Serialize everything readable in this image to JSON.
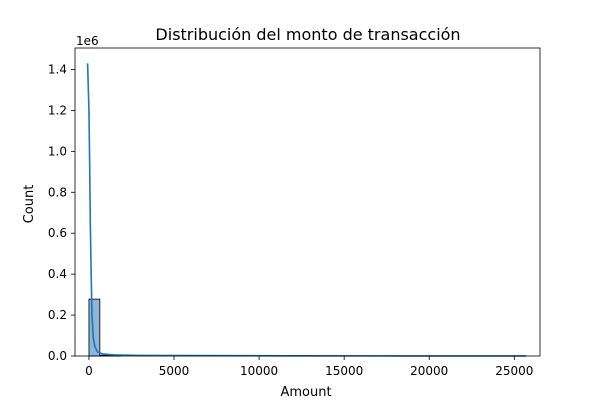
{
  "chart_data": {
    "type": "histogram",
    "title": "Distribución del monto de transacción",
    "xlabel": "Amount",
    "ylabel": "Count",
    "y_offset_text": "1e6",
    "xlim": [
      -820,
      26510
    ],
    "ylim": [
      0,
      1.505
    ],
    "x_ticks": [
      0,
      5000,
      10000,
      15000,
      20000,
      25000
    ],
    "x_tick_labels": [
      "0",
      "5000",
      "10000",
      "15000",
      "20000",
      "25000"
    ],
    "y_ticks": [
      0,
      0.2,
      0.4,
      0.6,
      0.8,
      1.0,
      1.2,
      1.4
    ],
    "y_tick_labels": [
      "0.0",
      "0.2",
      "0.4",
      "0.6",
      "0.8",
      "1.0",
      "1.2",
      "1.4"
    ],
    "bins": [
      {
        "x0": 0,
        "x1": 640,
        "count": 0.278
      },
      {
        "x0": 640,
        "x1": 1280,
        "count": 0.004
      },
      {
        "x0": 1280,
        "x1": 1920,
        "count": 0.001
      }
    ],
    "kde": {
      "x": [
        -80,
        0,
        40,
        80,
        130,
        180,
        250,
        350,
        500,
        800,
        1500,
        3000,
        6000,
        12000,
        18000,
        25700
      ],
      "y": [
        1.43,
        1.2,
        0.95,
        0.65,
        0.4,
        0.2,
        0.09,
        0.045,
        0.02,
        0.01,
        0.005,
        0.003,
        0.002,
        0.001,
        0.0005,
        0.0002
      ]
    },
    "colors": {
      "bar_fill": "#8bb7dc",
      "bar_edge": "#000000",
      "kde_line": "#1f77b4"
    },
    "grid": false
  }
}
